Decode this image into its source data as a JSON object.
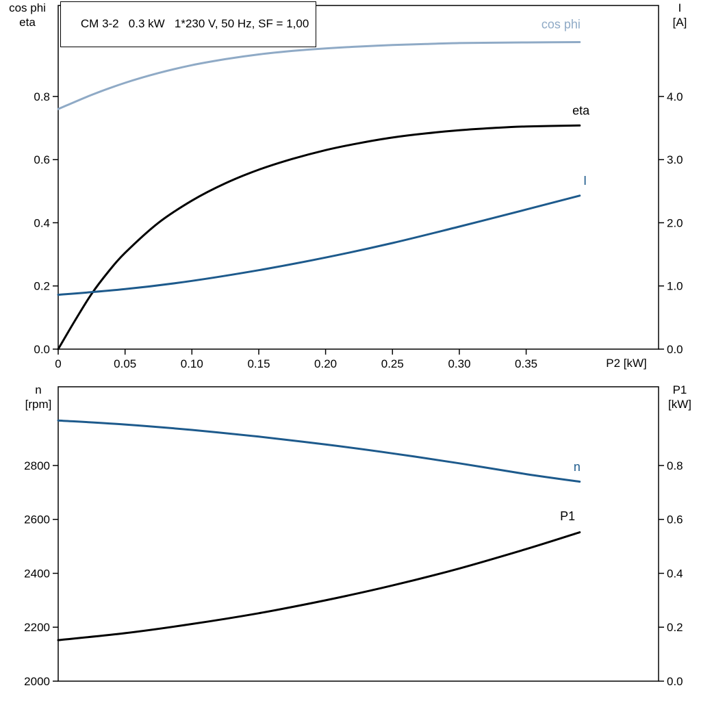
{
  "title_box": {
    "text": "CM 3-2   0.3 kW   1*230 V, 50 Hz, SF = 1,00"
  },
  "axis_corner_labels": {
    "top_left_line1": "cos phi",
    "top_left_line2": "eta",
    "top_right_line1": "I",
    "top_right_line2": "[A]",
    "x_label": "P2 [kW]",
    "bottom_left_line1": "n",
    "bottom_left_line2": "[rpm]",
    "bottom_right_line1": "P1",
    "bottom_right_line2": "[kW]"
  },
  "colors": {
    "light_blue": "#8faac6",
    "dark_blue": "#1d5a8c",
    "black": "#000000"
  },
  "chart_data": [
    {
      "type": "line",
      "title": "CM 3-2   0.3 kW   1*230 V, 50 Hz, SF = 1,00",
      "xlabel": "P2 [kW]",
      "ylabel_left": "cos phi / eta",
      "ylabel_right": "I [A]",
      "x_range": [
        0,
        0.449
      ],
      "x_ticks": {
        "values": [
          0,
          0.05,
          0.1,
          0.15,
          0.2,
          0.25,
          0.3,
          0.35
        ],
        "labels": [
          "0",
          "0.05",
          "0.10",
          "0.15",
          "0.20",
          "0.25",
          "0.30",
          "0.35"
        ]
      },
      "y_left": {
        "range": [
          0,
          1.088
        ],
        "ticks": {
          "values": [
            0,
            0.2,
            0.4,
            0.6,
            0.8
          ],
          "labels": [
            "0.0",
            "0.2",
            "0.4",
            "0.6",
            "0.8"
          ]
        }
      },
      "y_right": {
        "range": [
          0,
          5.44
        ],
        "ticks": {
          "values": [
            0,
            1,
            2,
            3,
            4
          ],
          "labels": [
            "0.0",
            "1.0",
            "2.0",
            "3.0",
            "4.0"
          ]
        }
      },
      "series": [
        {
          "name": "cos phi",
          "axis": "left",
          "color": "#8faac6",
          "width": 3,
          "x": [
            0,
            0.025,
            0.05,
            0.075,
            0.1,
            0.125,
            0.15,
            0.175,
            0.2,
            0.225,
            0.25,
            0.275,
            0.3,
            0.325,
            0.35,
            0.39
          ],
          "y": [
            0.76,
            0.805,
            0.843,
            0.874,
            0.899,
            0.918,
            0.933,
            0.944,
            0.952,
            0.958,
            0.963,
            0.966,
            0.969,
            0.97,
            0.971,
            0.972
          ]
        },
        {
          "name": "eta",
          "axis": "left",
          "color": "#000000",
          "width": 3,
          "x": [
            0,
            0.0125,
            0.025,
            0.0375,
            0.05,
            0.075,
            0.1,
            0.125,
            0.15,
            0.175,
            0.2,
            0.225,
            0.25,
            0.275,
            0.3,
            0.325,
            0.35,
            0.39
          ],
          "y": [
            0,
            0.09,
            0.175,
            0.245,
            0.305,
            0.4,
            0.47,
            0.525,
            0.568,
            0.602,
            0.63,
            0.652,
            0.67,
            0.683,
            0.693,
            0.7,
            0.705,
            0.708
          ]
        },
        {
          "name": "I",
          "axis": "right",
          "color": "#1d5a8c",
          "width": 3,
          "x": [
            0,
            0.05,
            0.1,
            0.15,
            0.2,
            0.25,
            0.3,
            0.35,
            0.39
          ],
          "y": [
            0.86,
            0.95,
            1.08,
            1.25,
            1.45,
            1.68,
            1.94,
            2.21,
            2.43
          ]
        }
      ],
      "labels": [
        {
          "text": "cos phi",
          "x": 0.376,
          "y": 1.015,
          "axis": "left",
          "color": "#8faac6"
        },
        {
          "text": "eta",
          "x": 0.391,
          "y": 0.742,
          "axis": "left",
          "color": "#000000"
        },
        {
          "text": "I",
          "x": 0.394,
          "y": 2.6,
          "axis": "right",
          "color": "#1d5a8c"
        }
      ]
    },
    {
      "type": "line",
      "title": "",
      "xlabel": "",
      "ylabel_left": "n [rpm]",
      "ylabel_right": "P1 [kW]",
      "x_range": [
        0,
        0.449
      ],
      "x_ticks": {
        "values": [],
        "labels": []
      },
      "y_left": {
        "range": [
          2000,
          3092
        ],
        "ticks": {
          "values": [
            2000,
            2200,
            2400,
            2600,
            2800
          ],
          "labels": [
            "2000",
            "2200",
            "2400",
            "2600",
            "2800"
          ]
        }
      },
      "y_right": {
        "range": [
          0,
          1.092
        ],
        "ticks": {
          "values": [
            0,
            0.2,
            0.4,
            0.6,
            0.8
          ],
          "labels": [
            "0.0",
            "0.2",
            "0.4",
            "0.6",
            "0.8"
          ]
        }
      },
      "series": [
        {
          "name": "n",
          "axis": "left",
          "color": "#1d5a8c",
          "width": 3,
          "x": [
            0,
            0.05,
            0.1,
            0.15,
            0.2,
            0.25,
            0.3,
            0.35,
            0.39
          ],
          "y": [
            2967,
            2952,
            2932,
            2907,
            2878,
            2845,
            2808,
            2768,
            2740
          ]
        },
        {
          "name": "P1",
          "axis": "right",
          "color": "#000000",
          "width": 3,
          "x": [
            0,
            0.05,
            0.1,
            0.15,
            0.2,
            0.25,
            0.3,
            0.35,
            0.39
          ],
          "y": [
            0.152,
            0.178,
            0.212,
            0.252,
            0.3,
            0.355,
            0.418,
            0.49,
            0.552
          ]
        }
      ],
      "labels": [
        {
          "text": "n",
          "x": 0.388,
          "y": 2780,
          "axis": "left",
          "color": "#1d5a8c"
        },
        {
          "text": "P1",
          "x": 0.381,
          "y": 0.597,
          "axis": "right",
          "color": "#000000"
        }
      ]
    }
  ]
}
